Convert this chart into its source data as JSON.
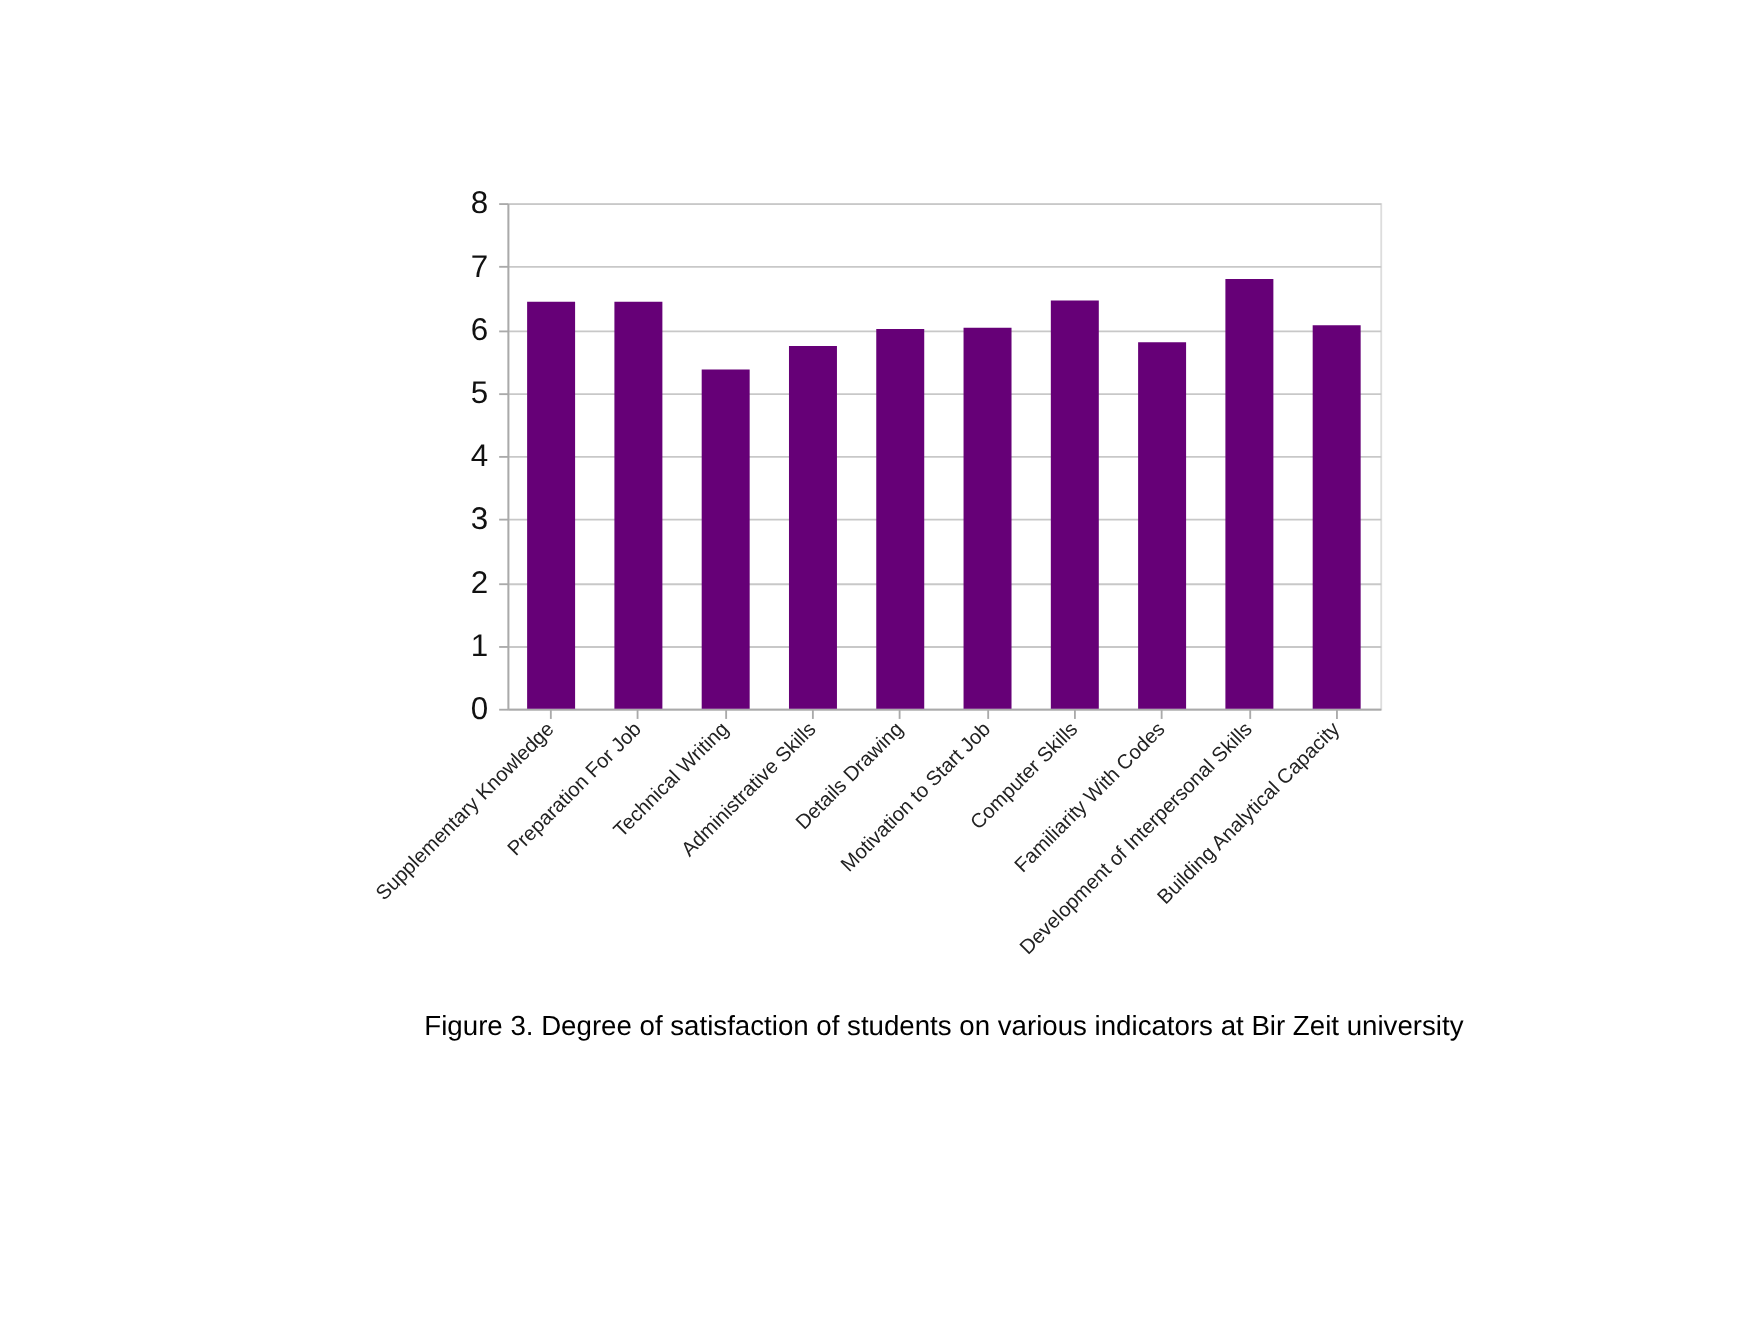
{
  "chart_data": {
    "type": "bar",
    "categories": [
      "Supplementary Knowledge",
      "Preparation For Job",
      "Technical Writing",
      "Administrative Skills",
      "Details Drawing",
      "Motivation to Start Job",
      "Computer Skills",
      "Familiarity With Codes",
      "Development of Interpersonal Skills",
      "Building Analytical Capacity"
    ],
    "values": [
      6.44,
      6.44,
      5.37,
      5.74,
      6.01,
      6.03,
      6.46,
      5.8,
      6.8,
      6.07
    ],
    "color": "#660077",
    "ylim": [
      0,
      8
    ],
    "yticks": [
      0,
      1,
      2,
      3,
      4,
      5,
      6,
      7,
      8
    ],
    "grid": "y",
    "annotations": [
      "Figure 3. Degree of satisfaction of students on various indicators at Bir Zeit university"
    ]
  }
}
